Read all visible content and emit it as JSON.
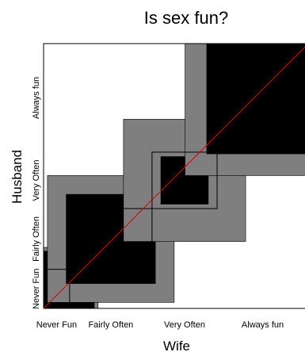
{
  "chart_data": {
    "type": "heatmap",
    "title": "Is sex fun?",
    "xlabel": "Wife",
    "ylabel": "Husband",
    "categories": [
      "Never Fun",
      "Fairly Often",
      "Very Often",
      "Always fun"
    ],
    "row_margins": [
      0.1475,
      0.2295,
      0.2131,
      0.4098
    ],
    "col_margins": [
      0.0984,
      0.3115,
      0.2459,
      0.3443
    ],
    "agreement_cells": [
      {
        "wife": "Never Fun",
        "husband": "Never Fun",
        "observed_fraction": 0.082,
        "expected_fraction": 0.0984
      },
      {
        "wife": "Fairly Often",
        "husband": "Fairly Often",
        "observed_fraction": 0.1148,
        "expected_fraction": 0.2295
      },
      {
        "wife": "Very Often",
        "husband": "Very Often",
        "observed_fraction": 0.0328,
        "expected_fraction": 0.2131
      },
      {
        "wife": "Always fun",
        "husband": "Always fun",
        "observed_fraction": 0.1803,
        "expected_fraction": 0.3443
      }
    ],
    "colors": {
      "expected": "#7f7f7f",
      "observed": "#000000",
      "diagonal": "#e00000",
      "frame": "#000000"
    }
  }
}
